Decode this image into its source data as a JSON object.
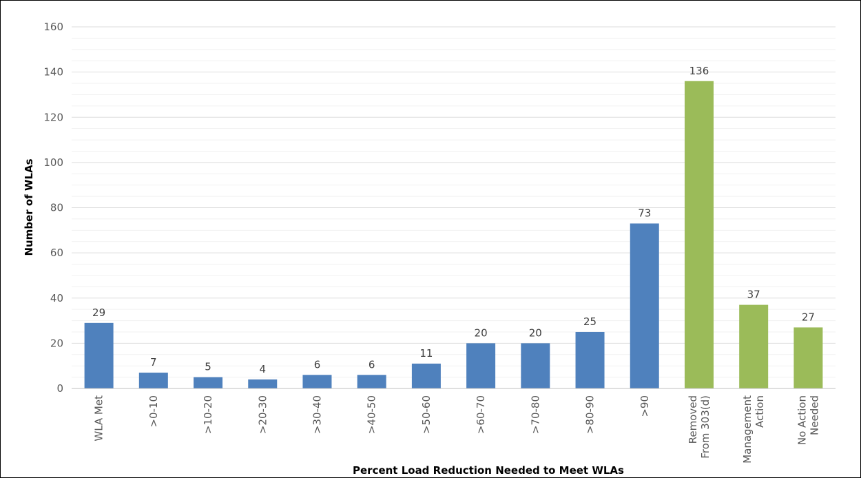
{
  "chart_data": {
    "type": "bar",
    "title": "",
    "xlabel": "Percent Load Reduction Needed to Meet WLAs",
    "ylabel": "Number of WLAs",
    "ylim": [
      0,
      160
    ],
    "yticks": [
      0,
      20,
      40,
      60,
      80,
      100,
      120,
      140,
      160
    ],
    "grid": true,
    "legend": "none",
    "categories": [
      [
        "WLA Met"
      ],
      [
        ">0-10"
      ],
      [
        ">10-20"
      ],
      [
        ">20-30"
      ],
      [
        ">30-40"
      ],
      [
        ">40-50"
      ],
      [
        ">50-60"
      ],
      [
        ">60-70"
      ],
      [
        ">70-80"
      ],
      [
        ">80-90"
      ],
      [
        ">90"
      ],
      [
        "Removed",
        "From 303(d)"
      ],
      [
        "Management",
        "Action"
      ],
      [
        "No Action",
        "Needed"
      ]
    ],
    "values": [
      29,
      7,
      5,
      4,
      6,
      6,
      11,
      20,
      20,
      25,
      73,
      136,
      37,
      27
    ],
    "bar_colors": [
      "#4f81bd",
      "#4f81bd",
      "#4f81bd",
      "#4f81bd",
      "#4f81bd",
      "#4f81bd",
      "#4f81bd",
      "#4f81bd",
      "#4f81bd",
      "#4f81bd",
      "#4f81bd",
      "#9bbb59",
      "#9bbb59",
      "#9bbb59"
    ]
  },
  "colors": {
    "gridline": "#e4e4e4",
    "axis": "#bfbfbf",
    "tick_text": "#595959",
    "data_label_text": "#404040"
  }
}
